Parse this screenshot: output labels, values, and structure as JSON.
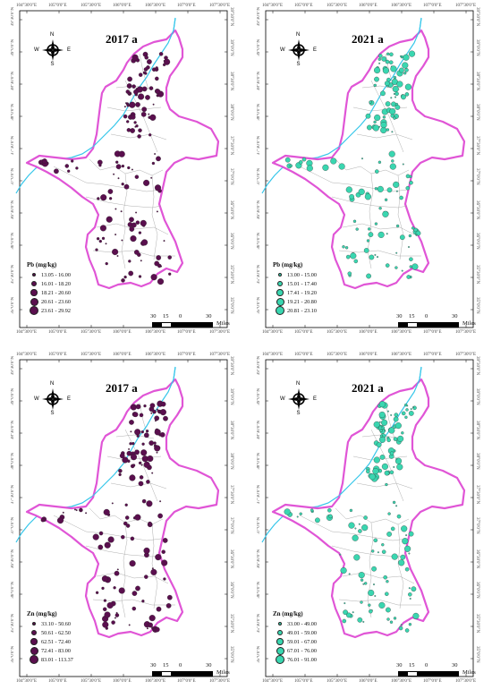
{
  "panels": [
    {
      "id": "pb2017",
      "year": "2017 a",
      "fill": "#5a0f4e",
      "legend_title": "Pb (mg/kg)",
      "legend": [
        "13.05 - 16.00",
        "16.01 - 18.20",
        "18.21 - 20.60",
        "20.61 - 23.60",
        "23.61 - 29.92"
      ],
      "lon_top": [
        "104°30'0\"E",
        "105°0'0\"E",
        "105°30'0\"E",
        "106°0'0\"E",
        "106°30'0\"E",
        "107°0'0\"E",
        "107°30'0\"E"
      ],
      "lon_bottom": [
        "104°30'0\"E",
        "105°0'0\"E",
        "105°30'0\"E",
        "106°0'0\"E",
        "106°30'0\"E",
        "107°0'0\"E",
        "107°30'0\"E"
      ],
      "lat_left": [
        "39°30'0\"N",
        "39°0'0\"N",
        "38°30'0\"N",
        "38°0'0\"N",
        "37°30'0\"N",
        "37°0'0\"N",
        "36°30'0\"N",
        "36°0'0\"N",
        "35°30'0\"N",
        "35°0'0\"N"
      ],
      "lat_right": [
        "39°30'0\"N",
        "39°0'0\"N",
        "38°30'0\"N",
        "38°0'0\"N",
        "37°30'0\"N",
        "37°0'0\"N",
        "36°30'0\"N",
        "36°0'0\"N",
        "35°30'0\"N",
        "35°0'0\"N"
      ],
      "scale": [
        "30",
        "15",
        "0",
        "30"
      ],
      "scale_units": "Miles",
      "compass": {
        "n": "N",
        "s": "S",
        "e": "E",
        "w": "W"
      }
    },
    {
      "id": "pb2021",
      "year": "2021 a",
      "fill": "#3ad6b0",
      "legend_title": "Pb (mg/kg)",
      "legend": [
        "13.00 - 15.00",
        "15.01 - 17.40",
        "17.41 - 19.20",
        "19.21 - 20.80",
        "20.81 - 23.10"
      ],
      "lon_top": [
        "104°30'0\"E",
        "105°0'0\"E",
        "105°30'0\"E",
        "106°0'0\"E",
        "106°30'0\"E",
        "107°0'0\"E",
        "107°30'0\"E"
      ],
      "lon_bottom": [
        "104°30'0\"E",
        "105°0'0\"E",
        "105°30'0\"E",
        "106°0'0\"E",
        "106°30'0\"E",
        "107°0'0\"E",
        "107°30'0\"E"
      ],
      "lat_left": [
        "39°30'0\"N",
        "39°0'0\"N",
        "38°30'0\"N",
        "38°0'0\"N",
        "37°30'0\"N",
        "37°0'0\"N",
        "36°30'0\"N",
        "36°0'0\"N",
        "35°30'0\"N",
        "35°0'0\"N"
      ],
      "lat_right": [
        "39°30'0\"N",
        "39°0'0\"N",
        "38°30'0\"N",
        "38°0'0\"N",
        "37°30'0\"N",
        "37°0'0\"N",
        "36°30'0\"N",
        "36°0'0\"N",
        "35°30'0\"N",
        "35°0'0\"N"
      ],
      "scale": [
        "30",
        "15",
        "0",
        "30"
      ],
      "scale_units": "Miles",
      "compass": {
        "n": "N",
        "s": "S",
        "e": "E",
        "w": "W"
      }
    },
    {
      "id": "zn2017",
      "year": "2017 a",
      "fill": "#5a0f4e",
      "legend_title": "Zn (mg/kg)",
      "legend": [
        "33.10 - 50.60",
        "50.61 - 62.50",
        "62.51 - 72.40",
        "72.41 - 83.00",
        "83.01 - 113.37"
      ],
      "lon_top": [
        "104°30'0\"E",
        "105°0'0\"E",
        "105°30'0\"E",
        "106°0'0\"E",
        "106°30'0\"E",
        "107°0'0\"E",
        "107°30'0\"E"
      ],
      "lon_bottom": [
        "104°30'0\"E",
        "105°0'0\"E",
        "105°30'0\"E",
        "106°0'0\"E",
        "106°30'0\"E",
        "107°0'0\"E",
        "107°30'0\"E"
      ],
      "lat_left": [
        "39°30'0\"N",
        "39°0'0\"N",
        "38°30'0\"N",
        "38°0'0\"N",
        "37°30'0\"N",
        "37°0'0\"N",
        "36°30'0\"N",
        "36°0'0\"N",
        "35°30'0\"N",
        "35°0'0\"N"
      ],
      "lat_right": [
        "39°30'0\"N",
        "39°0'0\"N",
        "38°30'0\"N",
        "38°0'0\"N",
        "37°30'0\"N",
        "37°0'0\"N",
        "36°30'0\"N",
        "36°0'0\"N",
        "35°30'0\"N",
        "35°0'0\"N"
      ],
      "scale": [
        "30",
        "15",
        "0",
        "30"
      ],
      "scale_units": "Miles",
      "compass": {
        "n": "N",
        "s": "S",
        "e": "E",
        "w": "W"
      }
    },
    {
      "id": "zn2021",
      "year": "2021 a",
      "fill": "#3ad6b0",
      "legend_title": "Zn (mg/kg)",
      "legend": [
        "33.00 - 49.00",
        "49.01 - 59.00",
        "59.01 - 67.00",
        "67.01 - 76.00",
        "76.01 - 91.00"
      ],
      "lon_top": [
        "104°30'0\"E",
        "105°0'0\"E",
        "105°30'0\"E",
        "106°0'0\"E",
        "106°30'0\"E",
        "107°0'0\"E",
        "107°30'0\"E"
      ],
      "lon_bottom": [
        "104°30'0\"E",
        "105°0'0\"E",
        "105°30'0\"E",
        "106°0'0\"E",
        "106°30'0\"E",
        "107°0'0\"E",
        "107°30'0\"E"
      ],
      "lat_left": [
        "39°30'0\"N",
        "39°0'0\"N",
        "38°30'0\"N",
        "38°0'0\"N",
        "37°30'0\"N",
        "37°0'0\"N",
        "36°30'0\"N",
        "36°0'0\"N",
        "35°30'0\"N",
        "35°0'0\"N"
      ],
      "lat_right": [
        "39°30'0\"N",
        "39°0'0\"N",
        "38°30'0\"N",
        "38°0'0\"N",
        "37°30'0\"N",
        "37°0'0\"N",
        "36°30'0\"N",
        "36°0'0\"N",
        "35°30'0\"N",
        "35°0'0\"N"
      ],
      "scale": [
        "30",
        "15",
        "0",
        "30"
      ],
      "scale_units": "Miles",
      "compass": {
        "n": "N",
        "s": "S",
        "e": "E",
        "w": "W"
      }
    }
  ],
  "colors": {
    "boundary": "#e055d6",
    "river": "#35c6ea",
    "district_lines": "#9a9a9a",
    "symbol_stroke": "#222222",
    "scale_dark": "#000000",
    "scale_light": "#ffffff"
  }
}
